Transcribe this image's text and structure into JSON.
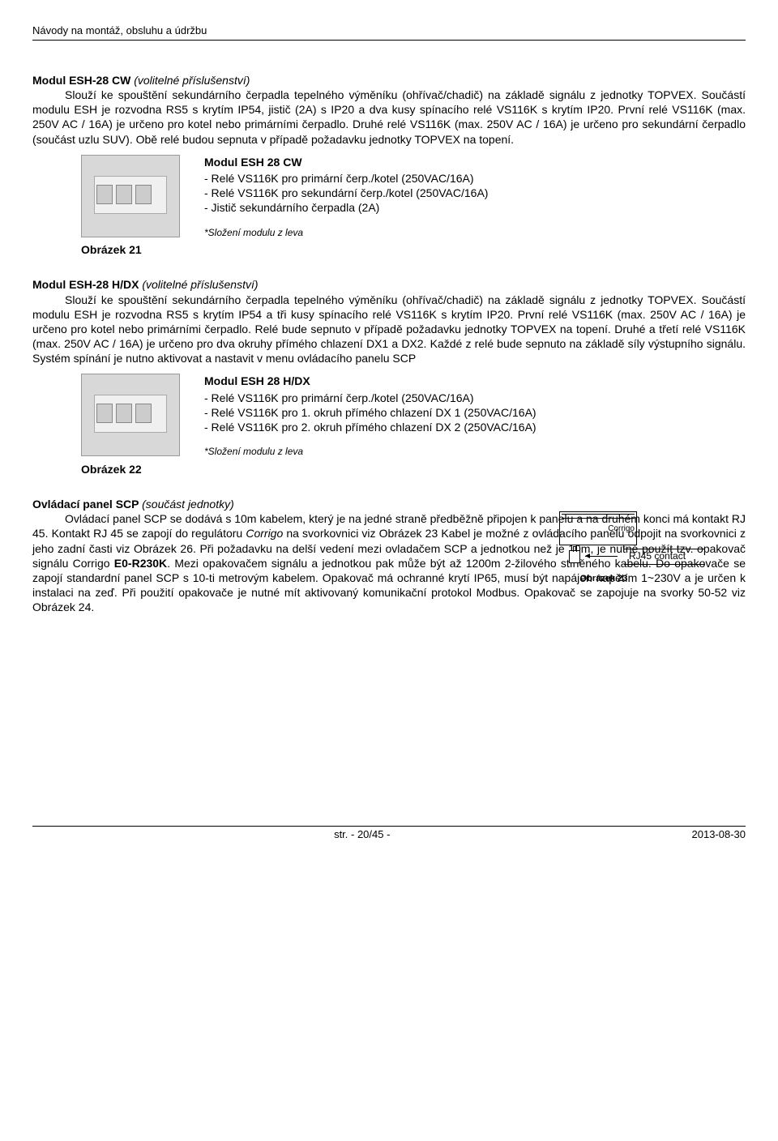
{
  "header": "Návody na montáž, obsluhu a údržbu",
  "sec1": {
    "title": "Modul ESH-28 CW ",
    "subtitle": "(volitelné příslušenství)",
    "para": "Slouží ke spouštění sekundárního čerpadla tepelného výměníku (ohřívač/chadič) na základě signálu z jednotky TOPVEX. Součástí modulu ESH je rozvodna RS5 s krytím IP54, jistič (2A) s IP20 a dva kusy spínacího relé VS116K s krytím IP20. První relé VS116K (max. 250V AC / 16A) je určeno pro kotel nebo primárními čerpadlo. Druhé relé VS116K (max. 250V AC / 16A) je určeno pro sekundární čerpadlo (součást uzlu SUV). Obě relé budou sepnuta v případě požadavku jednotky TOPVEX na topení.",
    "module_title": "Modul ESH 28 CW",
    "line1": "- Relé VS116K pro primární čerp./kotel (250VAC/16A)",
    "line2": "- Relé VS116K pro sekundární čerp./kotel (250VAC/16A)",
    "line3": "- Jistič sekundárního čerpadla (2A)",
    "note": "*Složení modulu z leva",
    "fig": "Obrázek 21"
  },
  "sec2": {
    "title": "Modul ESH-28 H/DX ",
    "subtitle": "(volitelné příslušenství)",
    "para": "Slouží ke spouštění sekundárního čerpadla tepelného výměníku (ohřívač/chadič) na základě signálu z jednotky TOPVEX. Součástí modulu ESH je rozvodna RS5 s krytím IP54 a tři kusy spínacího relé VS116K s krytím IP20. První relé VS116K (max. 250V AC / 16A) je určeno pro kotel nebo primárními čerpadlo. Relé bude sepnuto v případě požadavku jednotky TOPVEX na topení. Druhé a třetí relé VS116K (max. 250V AC / 16A) je určeno pro dva okruhy přímého chlazení DX1 a DX2. Každé z relé bude sepnuto na základě síly výstupního signálu. Systém spínání je nutno aktivovat a nastavit v menu ovládacího panelu SCP",
    "module_title": "Modul ESH 28 H/DX",
    "line1": "- Relé VS116K pro primární čerp./kotel (250VAC/16A)",
    "line2": "- Relé VS116K pro 1. okruh přímého chlazení DX 1 (250VAC/16A)",
    "line3": "- Relé VS116K pro 2. okruh přímého chlazení DX 2 (250VAC/16A)",
    "note": "*Složení modulu z leva",
    "fig": "Obrázek 22"
  },
  "sec3": {
    "title": "Ovládací panel SCP ",
    "subtitle": "(součást jednotky)",
    "p1": "Ovládací panel SCP se dodává s 10m kabelem, který je na jedné straně předběžně připojen k panelu a na druhém konci má kontakt RJ 45. Kontakt RJ 45 se zapojí do regulátoru ",
    "p1_em": "Corrigo",
    "p1b": " na svorkovnici viz Obrázek 23 Kabel je možné z ovládacího panelu odpojit na svorkovnici z jeho zadní časti viz Obrázek 26. Při požadavku na delší vedení mezi ovladačem SCP a jednotkou než je 10m, je nutné použít tzv. opakovač signálu Corrigo ",
    "p1_bold": "E0-R230K",
    "p1c": ". Mezi opakovačem signálu a jednotkou pak může být až 1200m 2-žilového stíněného kabelu. Do opakovače se zapojí standardní panel SCP s 10-ti metrovým kabelem. Opakovač má ochranné krytí IP65, musí být napájen napětím 1~230V a je určen k instalaci na zeď. Při použití opakovače je nutné mít aktivovaný komunikační protokol Modbus. Opakovač se zapojuje na svorky 50-52 viz Obrázek 24.",
    "diag_corrigo": "Corrigo",
    "diag_rj45": "RJ45 contact",
    "fig": "Obrázek 23"
  },
  "footer": {
    "page": "str. - 20/45 -",
    "date": "2013-08-30"
  }
}
